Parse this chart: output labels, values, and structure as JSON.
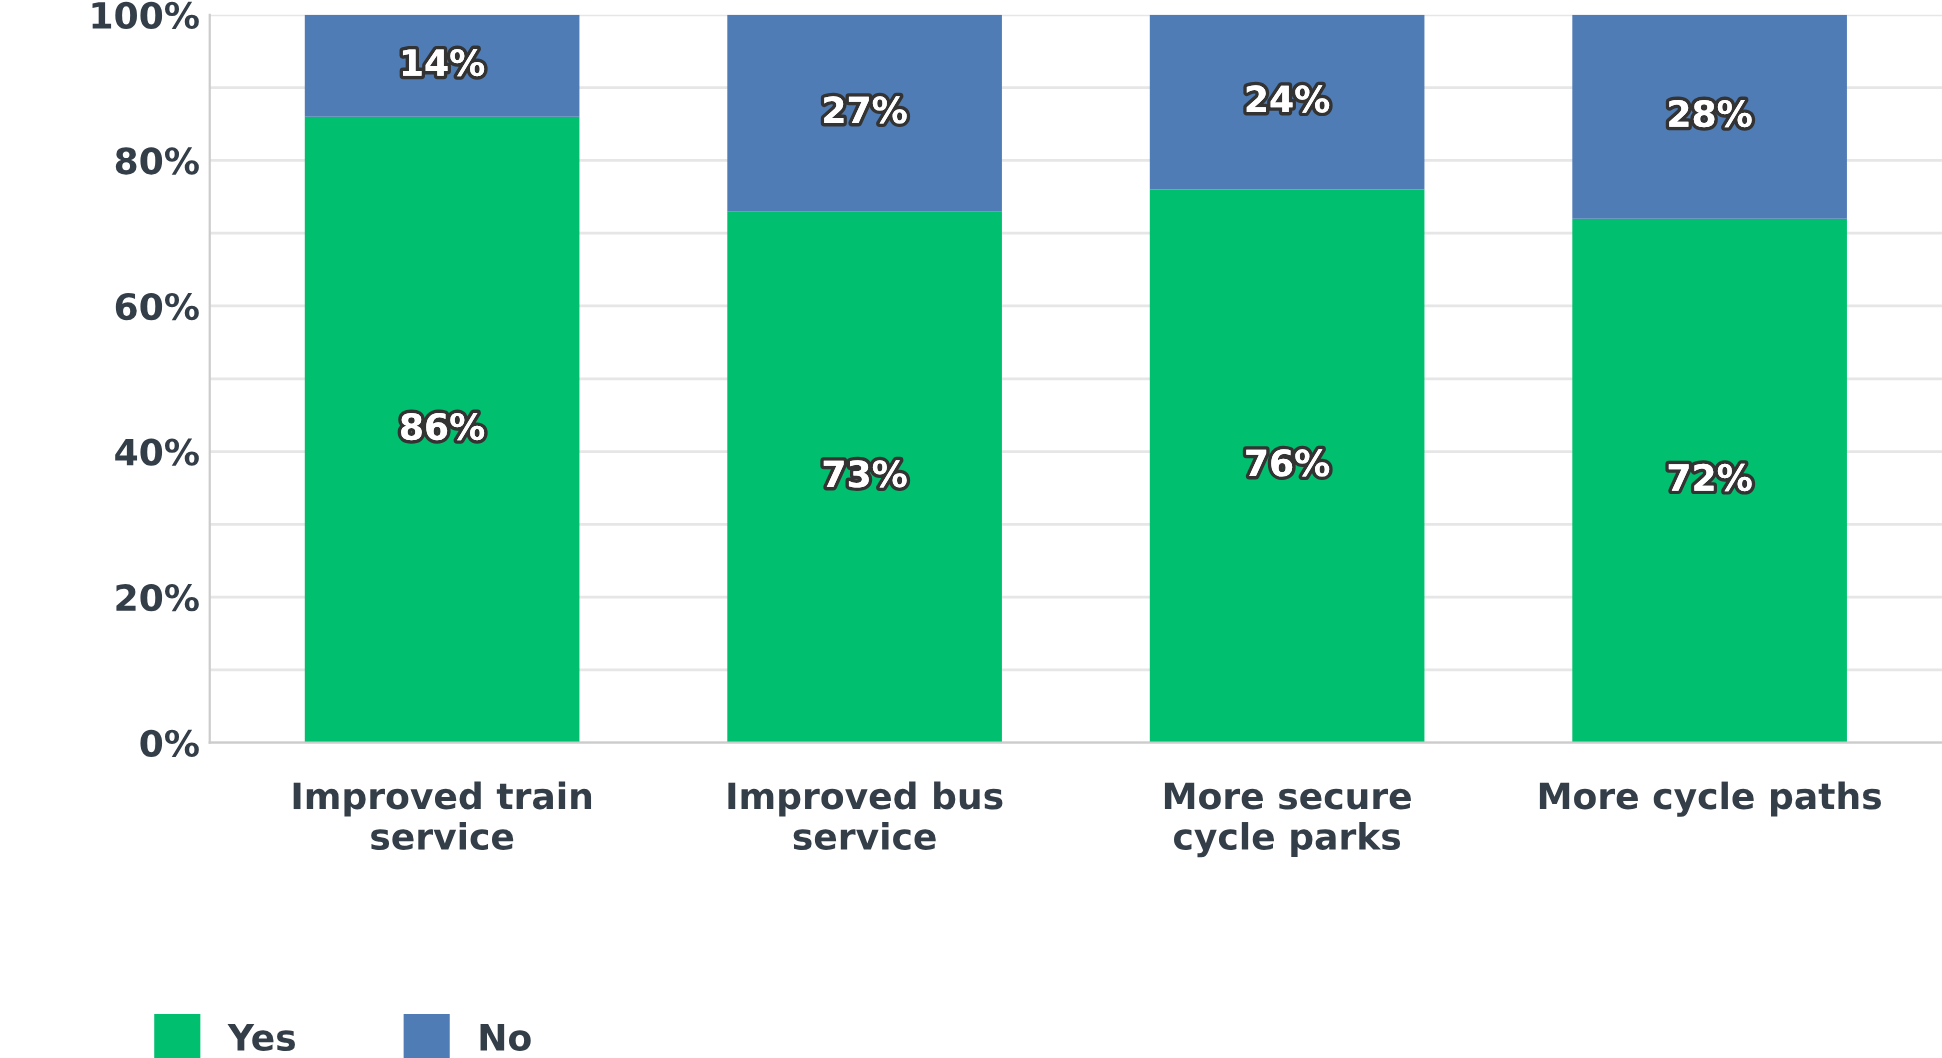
{
  "chart_data": {
    "type": "bar",
    "stacked": true,
    "categories": [
      "Improved train service",
      "Improved bus service",
      "More secure cycle parks",
      "More cycle paths"
    ],
    "series": [
      {
        "name": "Yes",
        "color": "#00bf6f",
        "values": [
          86,
          73,
          76,
          72
        ],
        "value_labels": [
          "86%",
          "73%",
          "76%",
          "72%"
        ]
      },
      {
        "name": "No",
        "color": "#507cb6",
        "values": [
          14,
          27,
          24,
          28
        ],
        "value_labels": [
          "14%",
          "27%",
          "24%",
          "28%"
        ]
      }
    ],
    "ylim": [
      0,
      100
    ],
    "yticks": [
      {
        "value": 0,
        "label": "0%"
      },
      {
        "value": 10,
        "label": null
      },
      {
        "value": 20,
        "label": "20%"
      },
      {
        "value": 30,
        "label": null
      },
      {
        "value": 40,
        "label": "40%"
      },
      {
        "value": 50,
        "label": null
      },
      {
        "value": 60,
        "label": "60%"
      },
      {
        "value": 70,
        "label": null
      },
      {
        "value": 80,
        "label": "80%"
      },
      {
        "value": 90,
        "label": null
      },
      {
        "value": 100,
        "label": "100%"
      }
    ],
    "grid": "y",
    "legend": "bottom left"
  }
}
